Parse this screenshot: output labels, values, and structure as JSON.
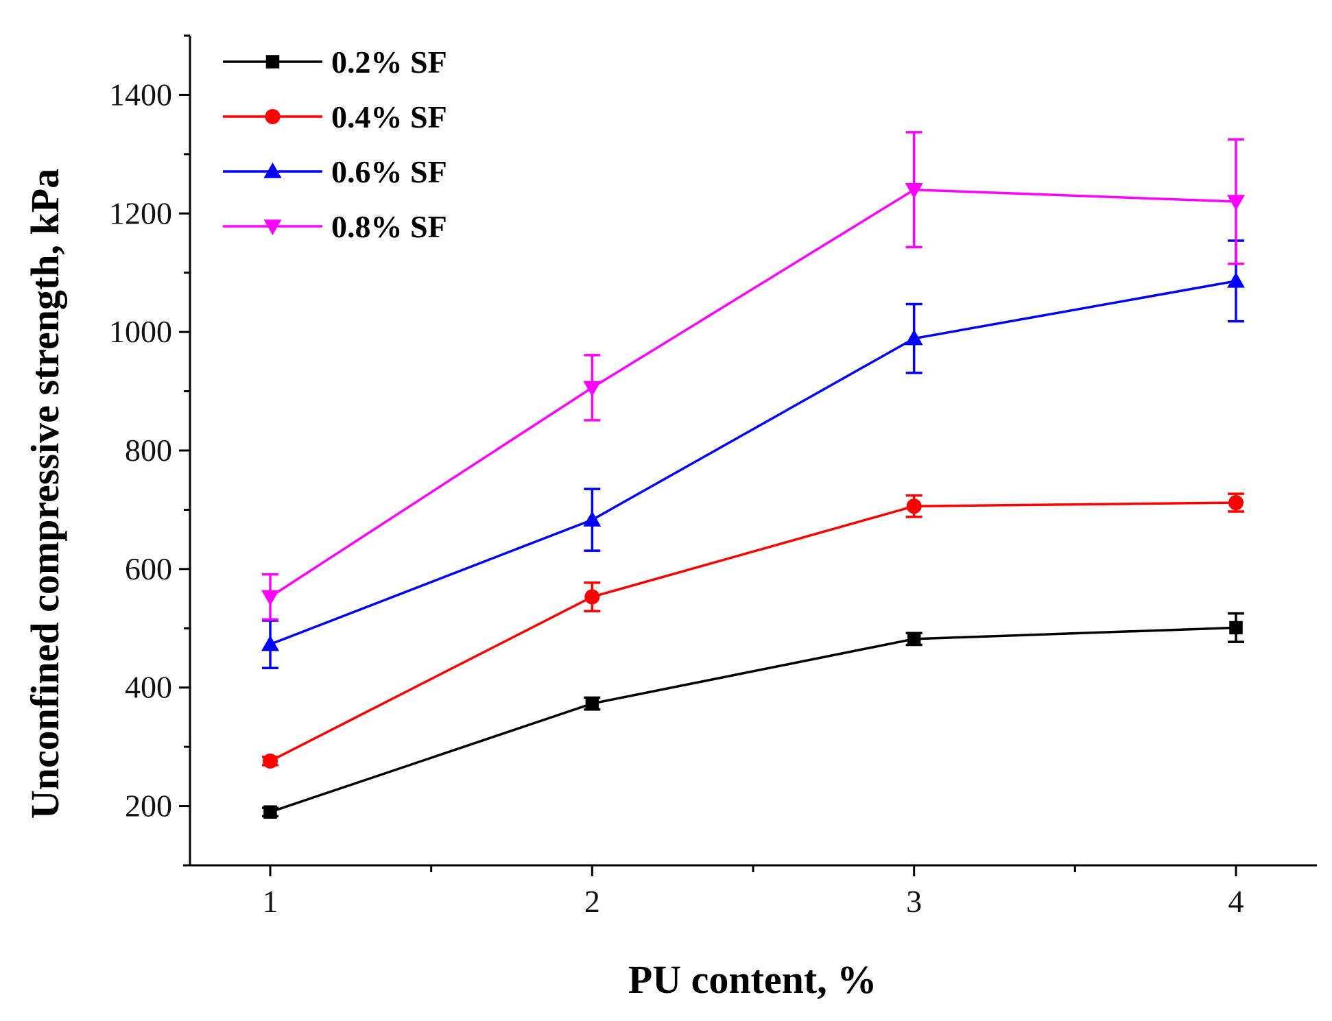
{
  "chart_data": {
    "type": "line",
    "title": "",
    "xlabel": "PU content, %",
    "ylabel": "Unconfined compressive strength, kPa",
    "x": [
      1,
      2,
      3,
      4
    ],
    "xlim": [
      0.75,
      4.25
    ],
    "ylim": [
      100,
      1500
    ],
    "x_ticks": [
      1,
      2,
      3,
      4
    ],
    "x_tick_labels": [
      "1",
      "2",
      "3",
      "4"
    ],
    "y_ticks": [
      200,
      400,
      600,
      800,
      1000,
      1200,
      1400
    ],
    "y_tick_labels": [
      "200",
      "400",
      "600",
      "800",
      "1000",
      "1200",
      "1400"
    ],
    "grid": false,
    "legend_position": "top-left",
    "series": [
      {
        "name": "0.2% SF",
        "color": "#000000",
        "marker": "square",
        "values": [
          190,
          373,
          482,
          501
        ],
        "errors": [
          7,
          10,
          10,
          24
        ]
      },
      {
        "name": "0.4% SF",
        "color": "#ff0000",
        "marker": "circle",
        "values": [
          276,
          553,
          706,
          712
        ],
        "errors": [
          7,
          24,
          18,
          15
        ]
      },
      {
        "name": "0.6% SF",
        "color": "#0000ff",
        "marker": "triangle-up",
        "values": [
          473,
          683,
          989,
          1086
        ],
        "errors": [
          40,
          52,
          58,
          68
        ]
      },
      {
        "name": "0.8% SF",
        "color": "#ff00ff",
        "marker": "triangle-down",
        "values": [
          553,
          906,
          1240,
          1220
        ],
        "errors": [
          38,
          55,
          97,
          105
        ]
      }
    ]
  }
}
